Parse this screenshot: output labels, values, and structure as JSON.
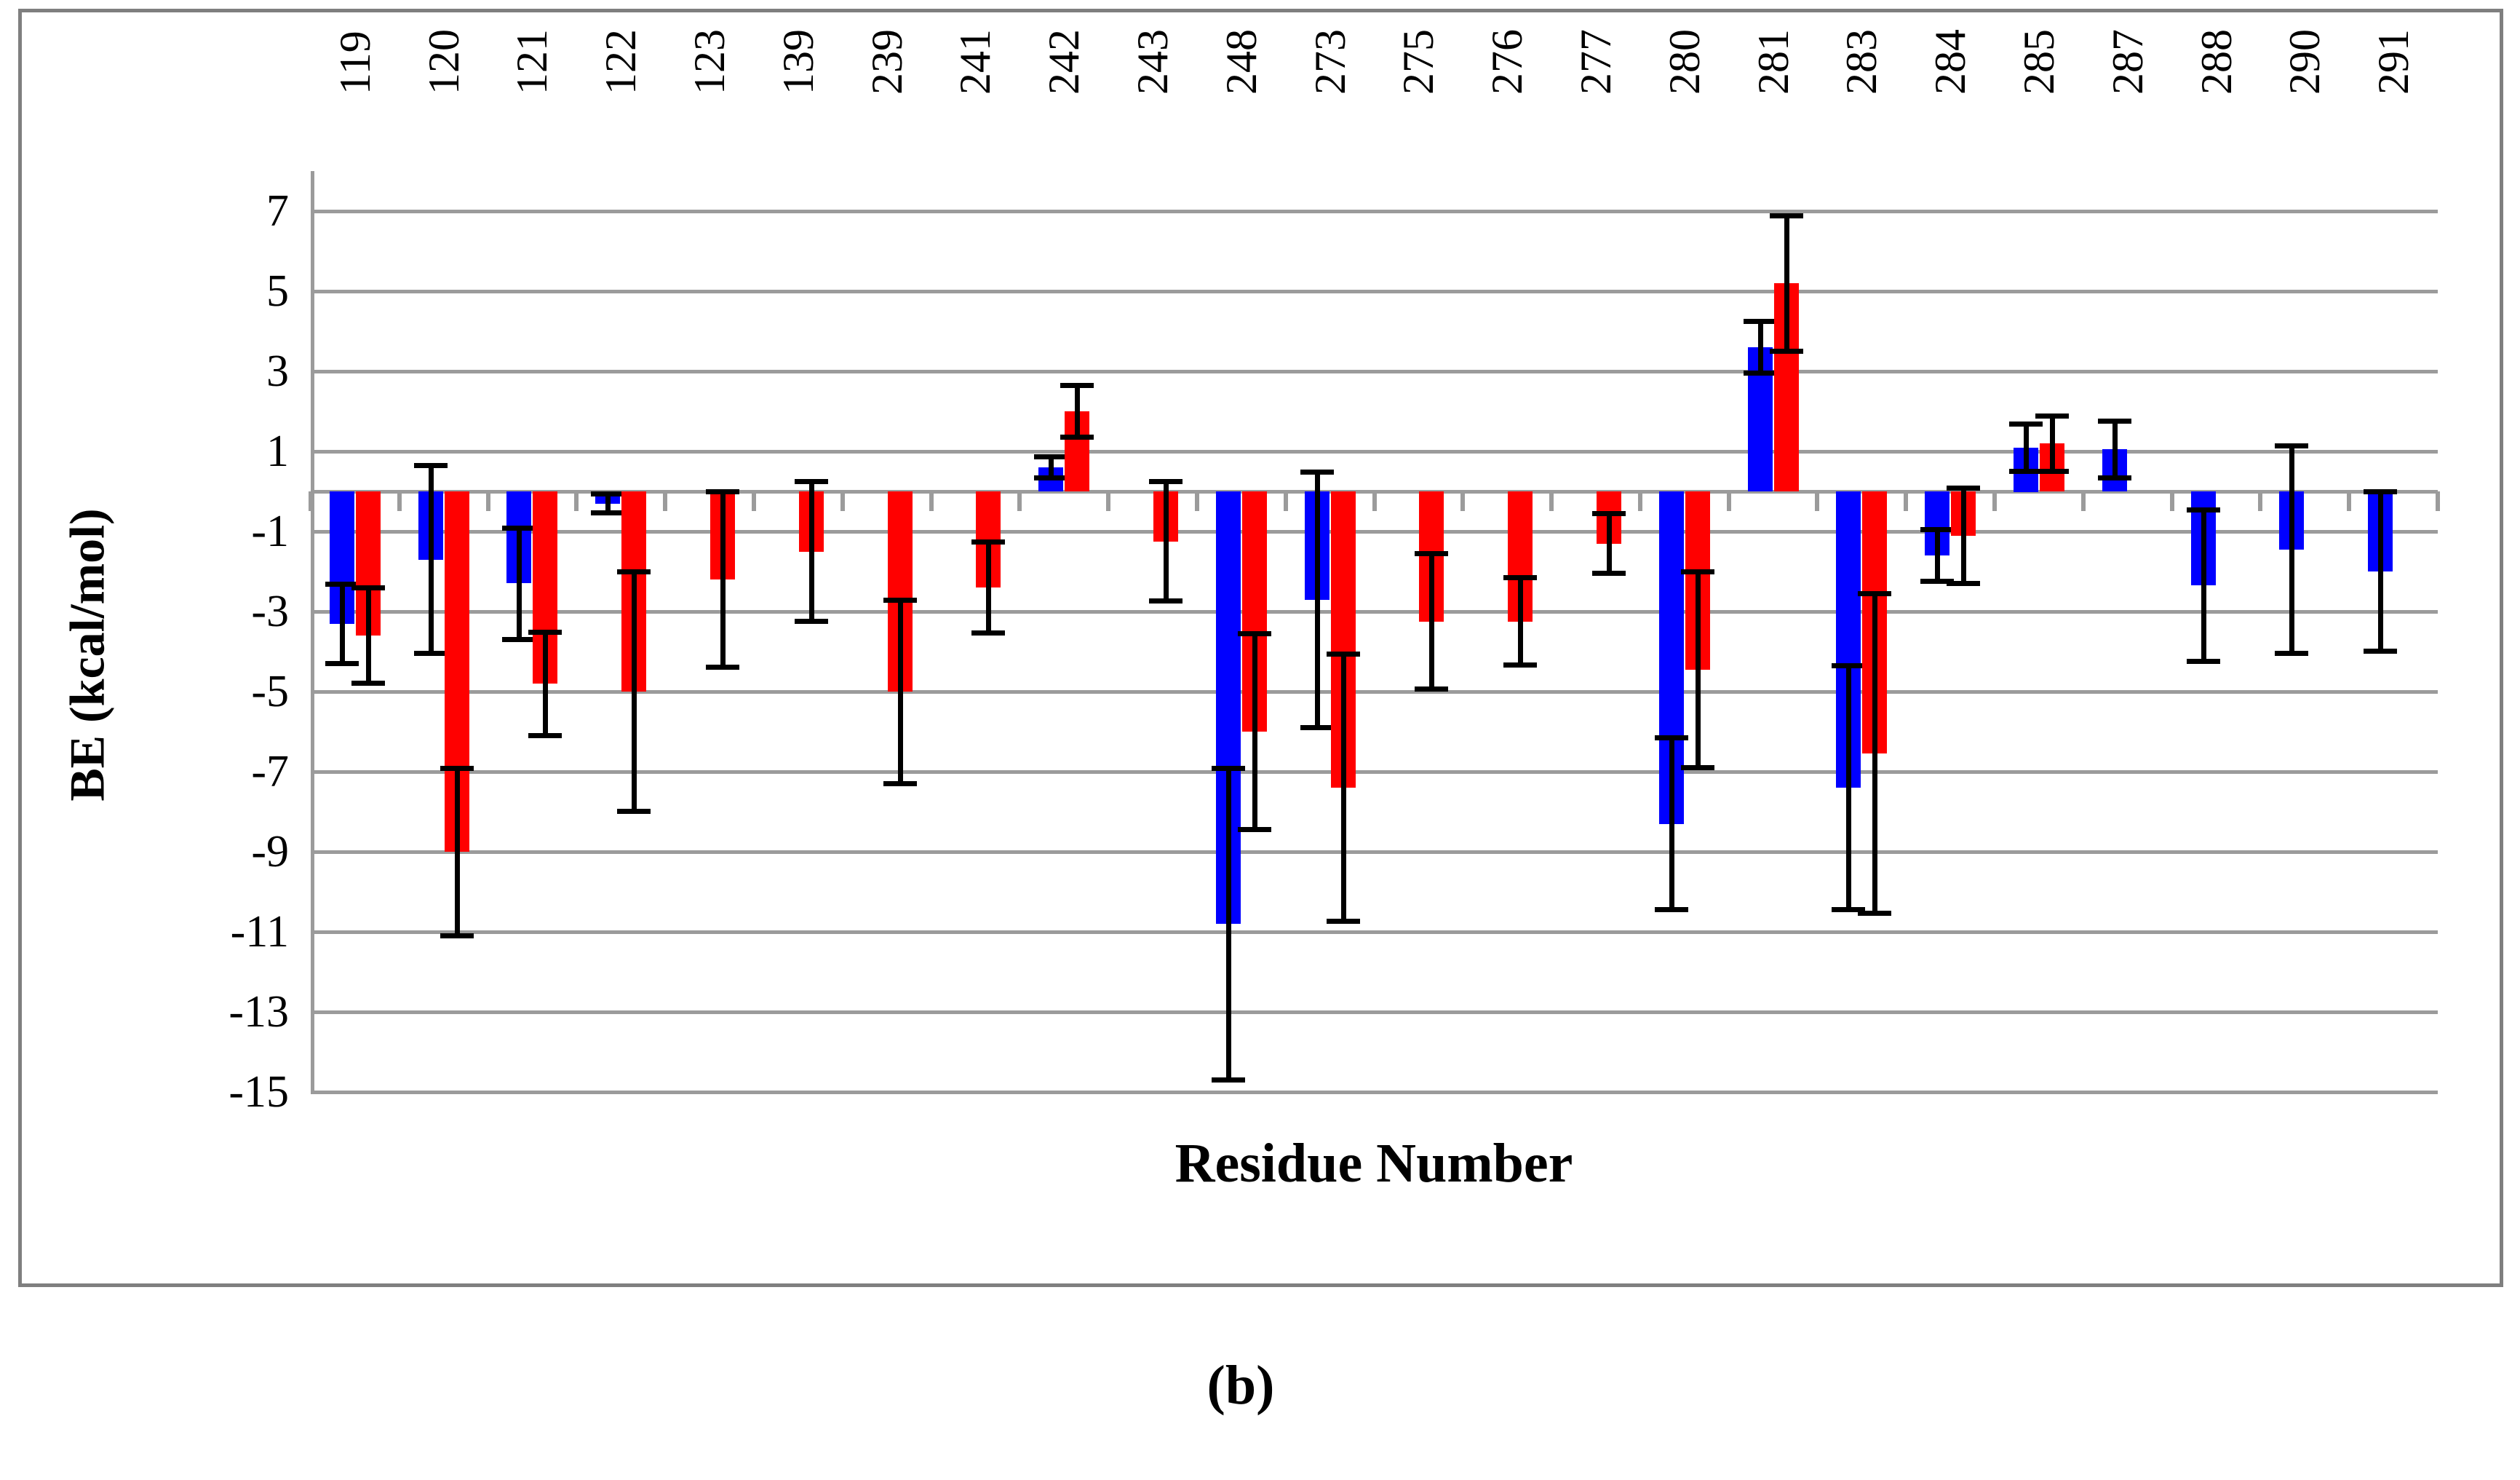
{
  "figure": {
    "caption": "(b)"
  },
  "chart_data": {
    "type": "bar",
    "title": "",
    "xlabel": "Residue Number",
    "ylabel": "BE (kcal/mol)",
    "ylim": [
      -15,
      7
    ],
    "yticks": [
      7,
      5,
      3,
      1,
      -1,
      -3,
      -5,
      -7,
      -9,
      -11,
      -13,
      -15
    ],
    "grid": "horizontal gridlines at every y tick",
    "legend_position": "none",
    "error_bars": "symmetric, black, with caps",
    "categories": [
      "119",
      "120",
      "121",
      "122",
      "123",
      "139",
      "239",
      "241",
      "242",
      "243",
      "248",
      "273",
      "275",
      "276",
      "277",
      "280",
      "281",
      "283",
      "284",
      "285",
      "287",
      "288",
      "290",
      "291"
    ],
    "series": [
      {
        "name": "blue",
        "color": "#0000ff",
        "values": [
          -3.3,
          -1.7,
          -2.3,
          -0.3,
          null,
          null,
          null,
          null,
          0.6,
          null,
          -10.8,
          -2.7,
          null,
          null,
          null,
          -8.3,
          3.6,
          -7.4,
          -1.6,
          1.1,
          1.05,
          -2.35,
          -1.45,
          -2.0
        ],
        "errors": [
          1.0,
          2.35,
          1.4,
          0.25,
          null,
          null,
          null,
          null,
          0.27,
          null,
          3.9,
          3.2,
          null,
          null,
          null,
          2.15,
          0.65,
          3.05,
          0.65,
          0.6,
          0.72,
          1.9,
          2.6,
          2.0
        ]
      },
      {
        "name": "red",
        "color": "#ff0000",
        "values": [
          -3.6,
          -9.0,
          -4.8,
          -5.0,
          -2.2,
          -1.5,
          -5.0,
          -2.4,
          2.0,
          -1.25,
          -6.0,
          -7.4,
          -3.25,
          -3.25,
          -1.3,
          -4.45,
          5.2,
          -6.55,
          -1.1,
          1.2,
          null,
          null,
          null,
          null
        ],
        "errors": [
          1.2,
          2.1,
          1.3,
          3.0,
          2.2,
          1.75,
          2.3,
          1.15,
          0.65,
          1.5,
          2.45,
          3.35,
          1.7,
          1.1,
          0.75,
          2.45,
          1.7,
          4.0,
          1.2,
          0.7,
          null,
          null,
          null,
          null
        ]
      }
    ]
  },
  "colors": {
    "bar_blue": "#0000ff",
    "bar_red": "#ff0000",
    "gridline": "#9b9b9b",
    "frame_border": "#7f7f7f",
    "error_bar": "#000000",
    "text": "#000000",
    "background": "#ffffff"
  }
}
